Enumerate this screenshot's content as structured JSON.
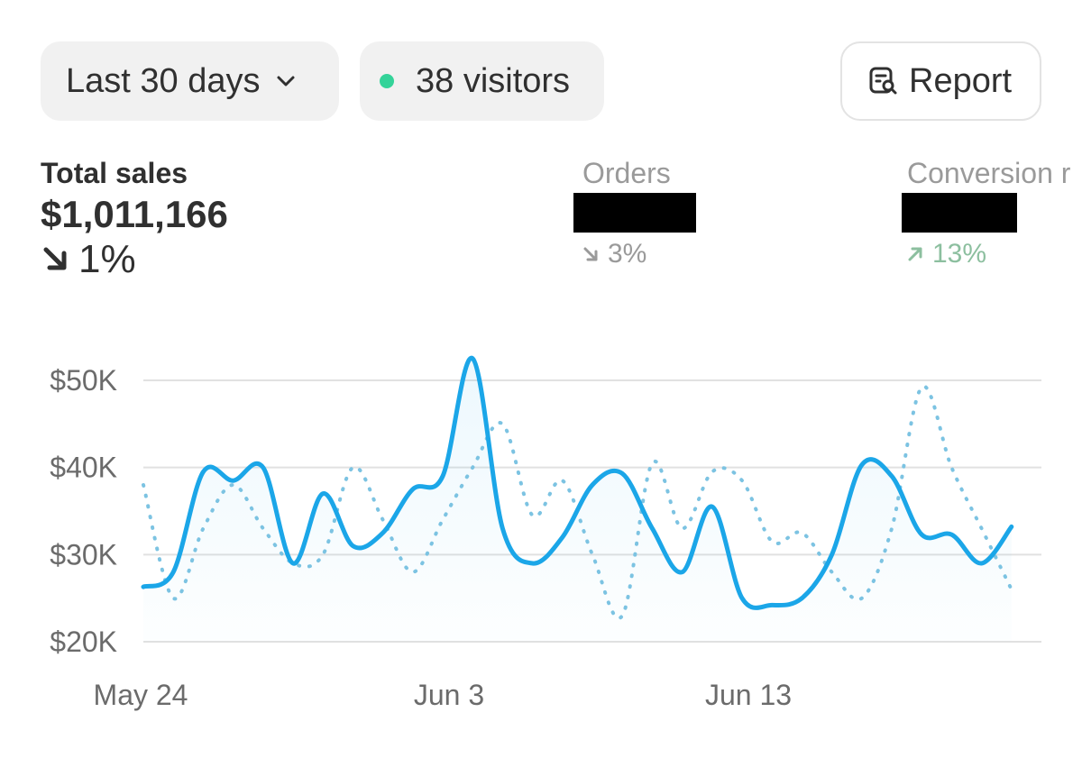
{
  "toolbar": {
    "date_range_label": "Last 30 days",
    "visitors_label": "38 visitors",
    "visitors_dot_color": "#34d399",
    "report_label": "Report"
  },
  "metrics": {
    "total_sales": {
      "label": "Total sales",
      "value": "$1,011,166",
      "change": "1%",
      "direction": "down"
    },
    "orders": {
      "label": "Orders",
      "value": "",
      "value_redacted": true,
      "change": "3%",
      "direction": "down"
    },
    "conversion": {
      "label": "Conversion r",
      "value": "",
      "value_redacted": true,
      "change": "13%",
      "direction": "up"
    }
  },
  "colors": {
    "primary_line": "#1ba6e8",
    "comparison_line": "#7cc3e2",
    "gridline": "#e1e1e1",
    "up": "#8cbf9f",
    "muted": "#9a9a9a"
  },
  "chart_data": {
    "type": "line",
    "x_tick_labels": [
      "May 24",
      "Jun 3",
      "Jun 13"
    ],
    "x_tick_positions": [
      0,
      10,
      20
    ],
    "y_tick_labels": [
      "$50K",
      "$40K",
      "$30K",
      "$20K"
    ],
    "y_tick_values": [
      50,
      40,
      30,
      20
    ],
    "ylim": [
      20,
      50
    ],
    "xlim": [
      0,
      30
    ],
    "grid": true,
    "series": [
      {
        "style": "solid",
        "values": [
          26.3,
          28,
          39.5,
          38.5,
          40,
          29,
          37,
          31,
          32.5,
          37.5,
          39,
          52.5,
          33,
          29,
          32,
          38,
          39.3,
          33,
          28,
          35.5,
          25,
          24.2,
          25,
          30,
          40.3,
          39,
          32.3,
          32.3,
          29,
          33.2
        ]
      },
      {
        "style": "dotted",
        "values": [
          38,
          25,
          33,
          38,
          33,
          29,
          30,
          40,
          34,
          28,
          34,
          40,
          45,
          34.5,
          38.5,
          30,
          23,
          40.5,
          33,
          39.5,
          38.5,
          31.5,
          32.5,
          28,
          25,
          33,
          49.2,
          40,
          33,
          26
        ]
      }
    ]
  }
}
